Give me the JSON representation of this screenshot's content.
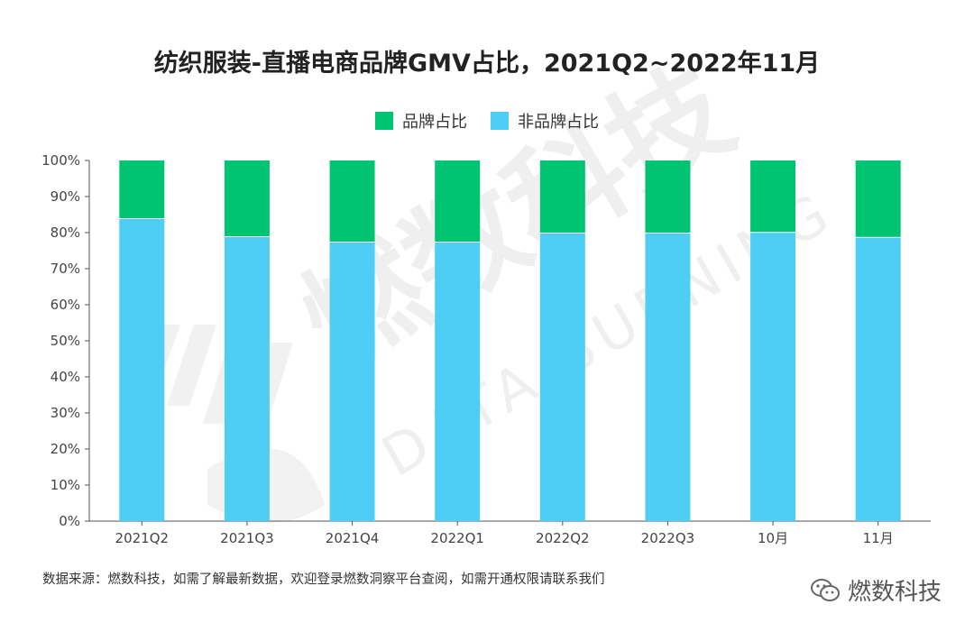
{
  "chart_data": {
    "type": "bar",
    "stacked": true,
    "title": "纺织服装-直播电商品牌GMV占比，2021Q2~2022年11月",
    "categories": [
      "2021Q2",
      "2021Q3",
      "2021Q4",
      "2022Q1",
      "2022Q2",
      "2022Q3",
      "10月",
      "11月"
    ],
    "series": [
      {
        "name": "非品牌占比",
        "color": "#4ECDF5",
        "values": [
          84,
          79,
          77.5,
          77.5,
          80,
          80,
          80.2,
          78.8
        ]
      },
      {
        "name": "品牌占比",
        "color": "#00C472",
        "values": [
          16,
          21,
          22.5,
          22.5,
          20,
          20,
          19.8,
          21.2
        ]
      }
    ],
    "legend_order": [
      "品牌占比",
      "非品牌占比"
    ],
    "legend_position": "top-center",
    "ylim": [
      0,
      100
    ],
    "yticks": [
      "0%",
      "10%",
      "20%",
      "30%",
      "40%",
      "50%",
      "60%",
      "70%",
      "80%",
      "90%",
      "100%"
    ],
    "xlabel": "",
    "ylabel": ""
  },
  "footer": {
    "source": "数据来源：燃数科技，如需了解最新数据，欢迎登录燃数洞察平台查阅，如需开通权限请联系我们"
  },
  "brand": {
    "name": "燃数科技",
    "icon": "wechat-icon"
  },
  "watermark": {
    "cn": "燃数科技",
    "en": "DATA BURNING"
  }
}
